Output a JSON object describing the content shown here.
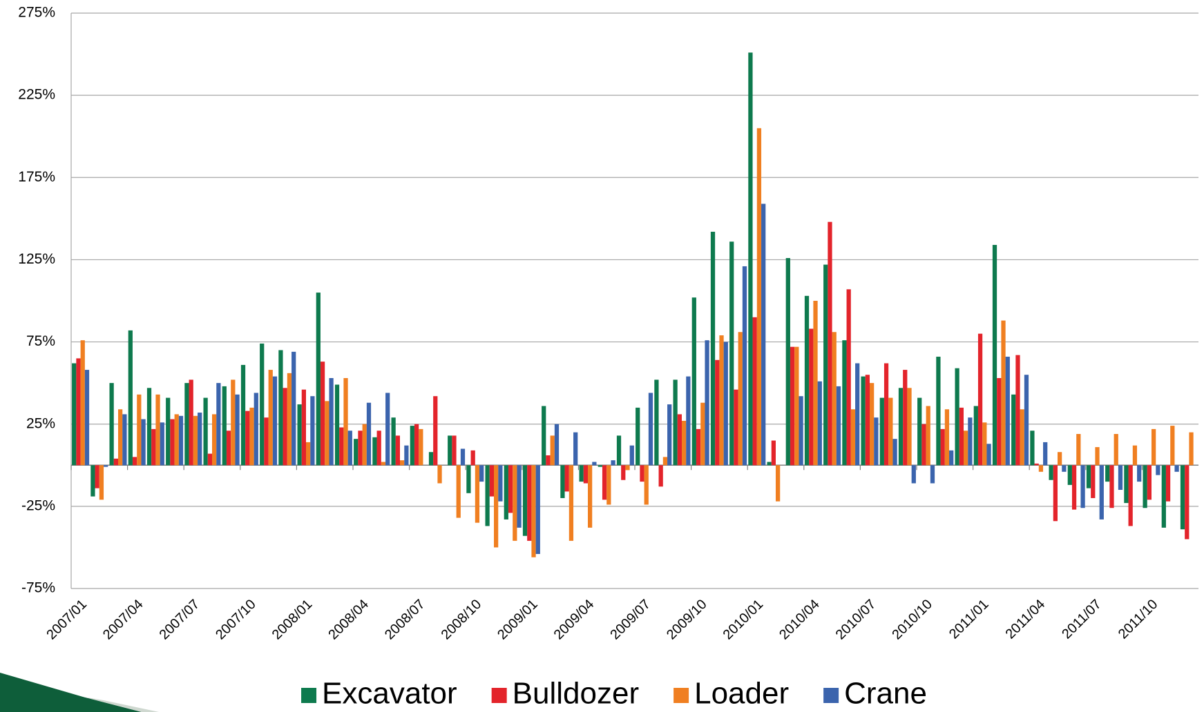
{
  "chart_data": {
    "type": "bar",
    "categories": [
      "2007/01",
      null,
      null,
      "2007/04",
      null,
      null,
      "2007/07",
      null,
      null,
      "2007/10",
      null,
      null,
      "2008/01",
      null,
      null,
      "2008/04",
      null,
      null,
      "2008/07",
      null,
      null,
      "2008/10",
      null,
      null,
      "2009/01",
      null,
      null,
      "2009/04",
      null,
      null,
      "2009/07",
      null,
      null,
      "2009/10",
      null,
      null,
      "2010/01",
      null,
      null,
      "2010/04",
      null,
      null,
      "2010/07",
      null,
      null,
      "2010/10",
      null,
      null,
      "2011/01",
      null,
      null,
      "2011/04",
      null,
      null,
      "2011/07",
      null,
      null,
      "2011/10",
      null,
      null
    ],
    "series": [
      {
        "name": "Excavator",
        "color": "#0e7a4e",
        "values": [
          62,
          -19,
          50,
          82,
          47,
          41,
          50,
          41,
          48,
          61,
          74,
          70,
          37,
          105,
          49,
          16,
          17,
          29,
          24,
          8,
          18,
          -17,
          -37,
          -33,
          -43,
          36,
          -20,
          -10,
          -1,
          18,
          35,
          52,
          52,
          102,
          142,
          136,
          251,
          2,
          126,
          103,
          122,
          76,
          54,
          41,
          47,
          41,
          66,
          59,
          36,
          134,
          43,
          21,
          -9,
          -12,
          -14,
          -10,
          -23,
          -26,
          -38,
          -39
        ]
      },
      {
        "name": "Bulldozer",
        "color": "#e3242b",
        "values": [
          65,
          -14,
          4,
          5,
          22,
          28,
          52,
          7,
          21,
          33,
          29,
          47,
          46,
          63,
          23,
          21,
          21,
          18,
          25,
          42,
          18,
          9,
          -19,
          -29,
          -46,
          6,
          -16,
          -11,
          -21,
          -9,
          -10,
          -13,
          31,
          22,
          64,
          46,
          90,
          15,
          72,
          83,
          148,
          107,
          55,
          62,
          58,
          25,
          22,
          35,
          80,
          53,
          67,
          1,
          -34,
          -27,
          -20,
          -26,
          -37,
          -21,
          -22,
          -45
        ]
      },
      {
        "name": "Loader",
        "color": "#f07f21",
        "values": [
          76,
          -21,
          34,
          43,
          43,
          31,
          30,
          31,
          52,
          35,
          58,
          56,
          14,
          39,
          53,
          25,
          2,
          3,
          22,
          -11,
          -32,
          -35,
          -50,
          -46,
          -56,
          18,
          -46,
          -38,
          -24,
          -3,
          -24,
          5,
          27,
          38,
          79,
          81,
          205,
          -22,
          72,
          100,
          81,
          34,
          50,
          41,
          47,
          36,
          34,
          21,
          26,
          88,
          34,
          -4,
          8,
          19,
          11,
          19,
          12,
          22,
          24,
          20
        ]
      },
      {
        "name": "Crane",
        "color": "#3b64ad",
        "values": [
          58,
          -1,
          31,
          28,
          26,
          30,
          32,
          50,
          43,
          44,
          54,
          69,
          42,
          53,
          21,
          38,
          44,
          12,
          0,
          0,
          10,
          -10,
          -22,
          -38,
          -54,
          25,
          20,
          2,
          3,
          12,
          44,
          37,
          54,
          76,
          75,
          121,
          159,
          0,
          42,
          51,
          48,
          62,
          29,
          16,
          -11,
          -11,
          9,
          29,
          13,
          66,
          55,
          14,
          -4,
          -26,
          -33,
          -15,
          -10,
          -6,
          -4,
          0
        ]
      }
    ],
    "ylim": [
      -75,
      275
    ],
    "yticks": [
      {
        "value": -75,
        "label": "-75%"
      },
      {
        "value": -25,
        "label": "-25%"
      },
      {
        "value": 25,
        "label": "25%"
      },
      {
        "value": 75,
        "label": "75%"
      },
      {
        "value": 125,
        "label": "125%"
      },
      {
        "value": 175,
        "label": "175%"
      },
      {
        "value": 225,
        "label": "225%"
      },
      {
        "value": 275,
        "label": "275%"
      }
    ],
    "grid": true,
    "legend": "bottom"
  }
}
